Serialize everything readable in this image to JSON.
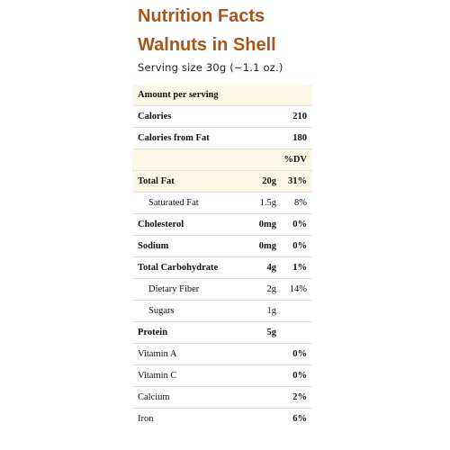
{
  "header": {
    "title": "Nutrition Facts",
    "product": "Walnuts in Shell",
    "serving_size": "Serving size 30g (~1.1 oz.)"
  },
  "table": {
    "amount_per_serving": "Amount per serving",
    "calories_label": "Calories",
    "calories_value": "210",
    "calories_fat_label": "Calories from Fat",
    "calories_fat_value": "180",
    "dv_header": "%DV",
    "rows": [
      {
        "label": "Total Fat",
        "amount": "20g",
        "dv": "31%"
      },
      {
        "label": "Saturated Fat",
        "amount": "1.5g",
        "dv": "8%"
      },
      {
        "label": "Cholesterol",
        "amount": "0mg",
        "dv": "0%"
      },
      {
        "label": "Sodium",
        "amount": "0mg",
        "dv": "0%"
      },
      {
        "label": "Total Carbohydrate",
        "amount": "4g",
        "dv": "1%"
      },
      {
        "label": "Dietary Fiber",
        "amount": "2g",
        "dv": "14%"
      },
      {
        "label": "Sugars",
        "amount": "1g",
        "dv": ""
      },
      {
        "label": "Protein",
        "amount": "5g",
        "dv": ""
      },
      {
        "label": "Vitamin A",
        "amount": "",
        "dv": "0%"
      },
      {
        "label": "Vitamin C",
        "amount": "",
        "dv": "0%"
      },
      {
        "label": "Calcium",
        "amount": "",
        "dv": "2%"
      },
      {
        "label": "Iron",
        "amount": "",
        "dv": "6%"
      }
    ]
  },
  "colors": {
    "title": "#a8561c",
    "header_shade": "#fcf7e6",
    "row_border": "#e2e2e2"
  }
}
